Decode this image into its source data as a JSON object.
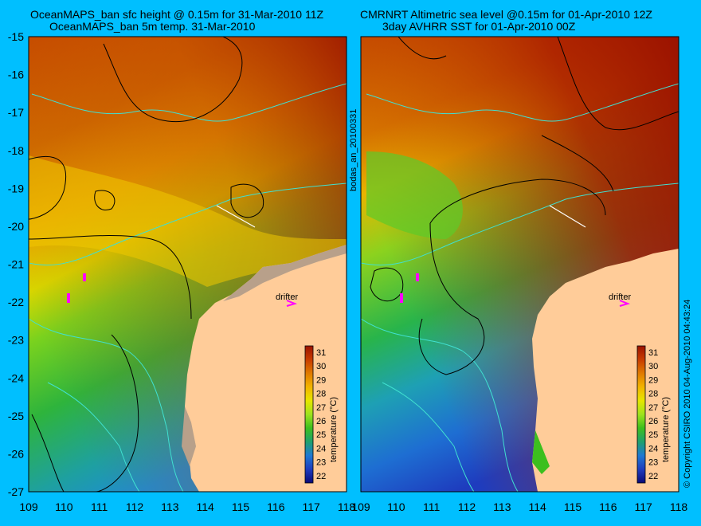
{
  "titles": {
    "left_line1": "OceanMAPS_ban sfc height @ 0.15m for 31-Mar-2010 11Z",
    "left_line2": "OceanMAPS_ban 5m temp. 31-Mar-2010",
    "right_line1": "CMRNRT Altimetric sea level  @0.15m  for 01-Apr-2010 12Z",
    "right_line2": "3day AVHRR SST for 01-Apr-2010 00Z"
  },
  "side_labels": {
    "middle": "bodas_an_20100331",
    "right": "© Copyright CSIRO 2010   04-Aug-2010 04:43:24"
  },
  "axes": {
    "y_ticks": [
      "-15",
      "-16",
      "-17",
      "-18",
      "-19",
      "-20",
      "-21",
      "-22",
      "-23",
      "-24",
      "-25",
      "-26",
      "-27"
    ],
    "x_ticks": [
      "109",
      "110",
      "111",
      "112",
      "113",
      "114",
      "115",
      "116",
      "117",
      "118"
    ]
  },
  "colorbar": {
    "label": "temperature (°C)",
    "ticks": [
      "31",
      "30",
      "29",
      "28",
      "27",
      "26",
      "25",
      "24",
      "23",
      "22"
    ],
    "colors": [
      "#9b1200",
      "#c83c00",
      "#e07a00",
      "#f2b400",
      "#e6e600",
      "#9ee21e",
      "#3cbf1e",
      "#1ea06e",
      "#1e78d2",
      "#1e3cbe",
      "#0a0a78"
    ]
  },
  "annotations": {
    "drifter_label": "drifter"
  },
  "colors": {
    "background": "#00bfff",
    "land": "#ffcc99",
    "coast_contour": "#40e0d0",
    "sst_contour": "#000000",
    "drifter": "#ff00ff"
  }
}
